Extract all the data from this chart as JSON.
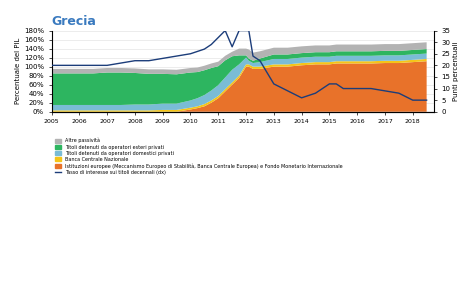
{
  "title": "Grecia",
  "years": [
    2005,
    2005.5,
    2006,
    2006.5,
    2007,
    2007.5,
    2008,
    2008.5,
    2009,
    2009.5,
    2010,
    2010.25,
    2010.5,
    2010.75,
    2011,
    2011.25,
    2011.5,
    2011.75,
    2012,
    2012.1,
    2012.25,
    2012.5,
    2013,
    2013.5,
    2014,
    2014.5,
    2015,
    2015.25,
    2015.5,
    2015.75,
    2016,
    2016.5,
    2017,
    2017.5,
    2018,
    2018.5
  ],
  "altre": [
    10,
    10,
    10,
    10,
    10,
    10,
    10,
    10,
    10,
    10,
    10,
    10,
    10,
    10,
    10,
    10,
    10,
    15,
    15,
    20,
    18,
    16,
    15,
    15,
    15,
    15,
    15,
    15,
    15,
    15,
    15,
    15,
    15,
    15,
    15,
    15
  ],
  "esteri": [
    70,
    70,
    70,
    70,
    72,
    72,
    70,
    68,
    66,
    65,
    62,
    58,
    55,
    50,
    42,
    38,
    30,
    20,
    5,
    5,
    5,
    8,
    10,
    10,
    10,
    10,
    10,
    10,
    10,
    10,
    10,
    10,
    10,
    10,
    10,
    10
  ],
  "domestici": [
    12,
    12,
    12,
    12,
    12,
    12,
    13,
    13,
    14,
    14,
    16,
    18,
    20,
    22,
    24,
    26,
    28,
    25,
    15,
    8,
    8,
    10,
    12,
    12,
    12,
    12,
    12,
    12,
    12,
    12,
    12,
    12,
    12,
    12,
    12,
    12
  ],
  "banca_naz": [
    3,
    3,
    3,
    3,
    3,
    3,
    3,
    3,
    4,
    4,
    4,
    4,
    5,
    5,
    5,
    5,
    5,
    5,
    5,
    5,
    5,
    5,
    5,
    5,
    5,
    5,
    5,
    5,
    5,
    5,
    5,
    5,
    5,
    5,
    5,
    5
  ],
  "istituzioni": [
    0,
    0,
    0,
    0,
    0,
    0,
    0,
    0,
    0,
    0,
    5,
    8,
    12,
    20,
    30,
    45,
    60,
    75,
    100,
    100,
    95,
    95,
    100,
    100,
    103,
    105,
    105,
    107,
    107,
    107,
    107,
    107,
    108,
    108,
    110,
    112
  ],
  "interest_rate": [
    20,
    20,
    20,
    20,
    20,
    21,
    22,
    22,
    23,
    24,
    25,
    26,
    27,
    29,
    32,
    35,
    28,
    35,
    35,
    35,
    24,
    22,
    12,
    9,
    6,
    8,
    12,
    12,
    10,
    10,
    10,
    10,
    9,
    8,
    5,
    5
  ],
  "colors": {
    "altre": "#b3b3b3",
    "esteri": "#2db560",
    "domestici": "#7abcd6",
    "banca_naz": "#f5c518",
    "istituzioni": "#e8722a",
    "line": "#1c3d7a"
  },
  "ylabel_left": "Percentuale del PIL",
  "ylabel_right": "Punti percentuali",
  "ylim_left": [
    0,
    180
  ],
  "ylim_right": [
    0,
    35
  ],
  "legend_items": [
    "Altre passività",
    "Titoli detenuti da operatori esteri privati",
    "Titoli detenuti da operatori domestici privati",
    "Banca Centrale Nazionale",
    "Istituzioni europee (Meccanismo Europeo di Stabilità, Banca Centrale Europea) e Fondo Monetario Internazionale",
    "Tasso di interesse sui titoli decennali (dx)"
  ],
  "legend_colors": [
    "#b3b3b3",
    "#2db560",
    "#7abcd6",
    "#f5c518",
    "#e8722a",
    "#1c3d7a"
  ],
  "yticks_left": [
    0,
    20,
    40,
    60,
    80,
    100,
    120,
    140,
    160,
    180
  ],
  "ytick_labels_left": [
    "0%",
    "20%",
    "40%",
    "60%",
    "80%",
    "100%",
    "120%",
    "140%",
    "160%",
    "180%"
  ],
  "yticks_right": [
    0,
    5,
    10,
    15,
    20,
    25,
    30,
    35
  ],
  "xticks": [
    2005,
    2006,
    2007,
    2008,
    2009,
    2010,
    2011,
    2012,
    2013,
    2014,
    2015,
    2016,
    2017,
    2018
  ],
  "background_color": "#ffffff"
}
